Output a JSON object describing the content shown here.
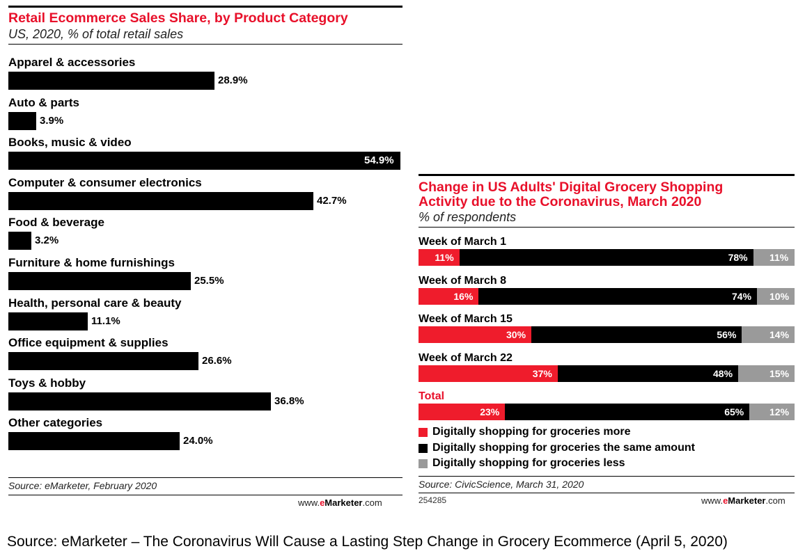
{
  "chart_data": [
    {
      "type": "bar",
      "orientation": "horizontal",
      "title": "Retail Ecommerce Sales Share, by Product Category",
      "subtitle": "US, 2020, % of total retail sales",
      "categories": [
        "Apparel & accessories",
        "Auto & parts",
        "Books, music & video",
        "Computer & consumer electronics",
        "Food & beverage",
        "Furniture & home furnishings",
        "Health, personal care & beauty",
        "Office equipment & supplies",
        "Toys & hobby",
        "Other categories"
      ],
      "values": [
        28.9,
        3.9,
        54.9,
        42.7,
        3.2,
        25.5,
        11.1,
        26.6,
        36.8,
        24.0
      ],
      "value_labels": [
        "28.9%",
        "3.9%",
        "54.9%",
        "42.7%",
        "3.2%",
        "25.5%",
        "11.1%",
        "26.6%",
        "36.8%",
        "24.0%"
      ],
      "xlim": [
        0,
        54.9
      ],
      "source": "Source: eMarketer, February 2020",
      "brand": {
        "prefix": "www.",
        "accent": "e",
        "name": "Marketer",
        "suffix": ".com"
      }
    },
    {
      "type": "bar",
      "orientation": "horizontal",
      "stacked": true,
      "title_lines": [
        "Change in US Adults' Digital Grocery Shopping",
        "Activity due to the Coronavirus, March 2020"
      ],
      "subtitle": "% of respondents",
      "categories": [
        "Week of March 1",
        "Week of March 8",
        "Week of March 15",
        "Week of March 22",
        "Total"
      ],
      "series": [
        {
          "name": "Digitally shopping for groceries more",
          "color": "#ef1c2c",
          "values": [
            11,
            16,
            30,
            37,
            23
          ],
          "labels": [
            "11%",
            "16%",
            "30%",
            "37%",
            "23%"
          ]
        },
        {
          "name": "Digitally shopping for groceries the same amount",
          "color": "#000000",
          "values": [
            78,
            74,
            56,
            48,
            65
          ],
          "labels": [
            "78%",
            "74%",
            "56%",
            "48%",
            "65%"
          ]
        },
        {
          "name": "Digitally shopping for groceries less",
          "color": "#9a9a9a",
          "values": [
            11,
            10,
            14,
            15,
            12
          ],
          "labels": [
            "11%",
            "10%",
            "14%",
            "15%",
            "12%"
          ]
        }
      ],
      "highlight_category": "Total",
      "source": "Source: CivicScience, March 31, 2020",
      "chart_id": "254285",
      "brand": {
        "prefix": "www.",
        "accent": "e",
        "name": "Marketer",
        "suffix": ".com"
      }
    }
  ],
  "caption": "Source: eMarketer – The Coronavirus Will Cause a Lasting Step Change in Grocery Ecommerce (April 5, 2020)",
  "colors": {
    "accent_red": "#e8102a",
    "bar_red": "#ef1c2c",
    "bar_black": "#000000",
    "bar_gray": "#9a9a9a"
  }
}
